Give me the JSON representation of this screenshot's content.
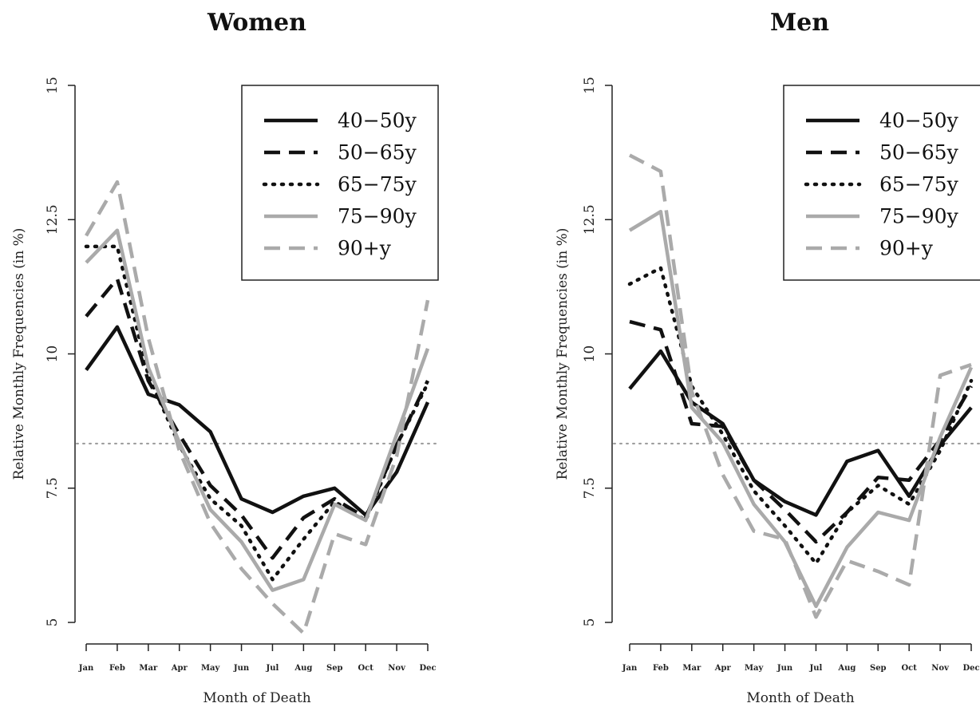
{
  "chart_data": [
    {
      "type": "line",
      "title": "Women",
      "xlabel": "Month of Death",
      "ylabel": "Relative Monthly Frequencies (in %)",
      "ylim": [
        5,
        15
      ],
      "yticks": [
        "5",
        "7.5",
        "10",
        "12.5",
        "15"
      ],
      "categories": [
        "Jan",
        "Feb",
        "Mar",
        "Apr",
        "May",
        "Jun",
        "Jul",
        "Aug",
        "Sep",
        "Oct",
        "Nov",
        "Dec"
      ],
      "reference_line": 8.33,
      "legend_position": "top-right",
      "series": [
        {
          "name": "40−50y",
          "style": "solid",
          "color": "#111111",
          "values": [
            9.7,
            10.5,
            9.25,
            9.05,
            8.55,
            7.3,
            7.05,
            7.35,
            7.5,
            7.0,
            7.8,
            9.1
          ]
        },
        {
          "name": "50−65y",
          "style": "dashed",
          "color": "#111111",
          "values": [
            10.7,
            11.4,
            9.5,
            8.5,
            7.55,
            7.0,
            6.2,
            6.95,
            7.3,
            6.95,
            8.3,
            9.5
          ]
        },
        {
          "name": "65−75y",
          "style": "dotted",
          "color": "#111111",
          "values": [
            12.0,
            12.0,
            9.6,
            8.3,
            7.3,
            6.8,
            5.8,
            6.55,
            7.25,
            6.9,
            8.3,
            9.45
          ]
        },
        {
          "name": "75−90y",
          "style": "solid",
          "color": "#aaaaaa",
          "values": [
            11.7,
            12.3,
            9.75,
            8.35,
            7.1,
            6.5,
            5.6,
            5.8,
            7.2,
            6.9,
            8.5,
            10.1
          ]
        },
        {
          "name": "90+y",
          "style": "dashed",
          "color": "#aaaaaa",
          "values": [
            12.2,
            13.2,
            10.3,
            8.2,
            6.85,
            6.0,
            5.35,
            4.8,
            6.65,
            6.45,
            8.1,
            11.0
          ]
        }
      ]
    },
    {
      "type": "line",
      "title": "Men",
      "xlabel": "Month of Death",
      "ylabel": "Relative Monthly Frequencies (in %)",
      "ylim": [
        5,
        15
      ],
      "yticks": [
        "5",
        "7.5",
        "10",
        "12.5",
        "15"
      ],
      "categories": [
        "Jan",
        "Feb",
        "Mar",
        "Apr",
        "May",
        "Jun",
        "Jul",
        "Aug",
        "Sep",
        "Oct",
        "Nov",
        "Dec"
      ],
      "reference_line": 8.33,
      "legend_position": "top-right",
      "series": [
        {
          "name": "40−50y",
          "style": "solid",
          "color": "#111111",
          "values": [
            9.35,
            10.05,
            9.1,
            8.7,
            7.65,
            7.25,
            7.0,
            8.0,
            8.2,
            7.35,
            8.3,
            9.0
          ]
        },
        {
          "name": "50−65y",
          "style": "dashed",
          "color": "#111111",
          "values": [
            10.6,
            10.45,
            8.7,
            8.65,
            7.65,
            7.1,
            6.5,
            7.05,
            7.7,
            7.65,
            8.4,
            9.4
          ]
        },
        {
          "name": "65−75y",
          "style": "dotted",
          "color": "#111111",
          "values": [
            11.3,
            11.6,
            9.4,
            8.5,
            7.45,
            6.8,
            6.1,
            7.05,
            7.55,
            7.2,
            8.2,
            9.5
          ]
        },
        {
          "name": "75−90y",
          "style": "solid",
          "color": "#aaaaaa",
          "values": [
            12.3,
            12.65,
            9.0,
            8.35,
            7.2,
            6.5,
            5.3,
            6.4,
            7.05,
            6.9,
            8.45,
            9.75
          ]
        },
        {
          "name": "90+y",
          "style": "dashed",
          "color": "#aaaaaa",
          "values": [
            13.7,
            13.4,
            9.3,
            7.75,
            6.7,
            6.55,
            5.1,
            6.15,
            5.95,
            5.7,
            9.6,
            9.8
          ]
        }
      ]
    }
  ]
}
